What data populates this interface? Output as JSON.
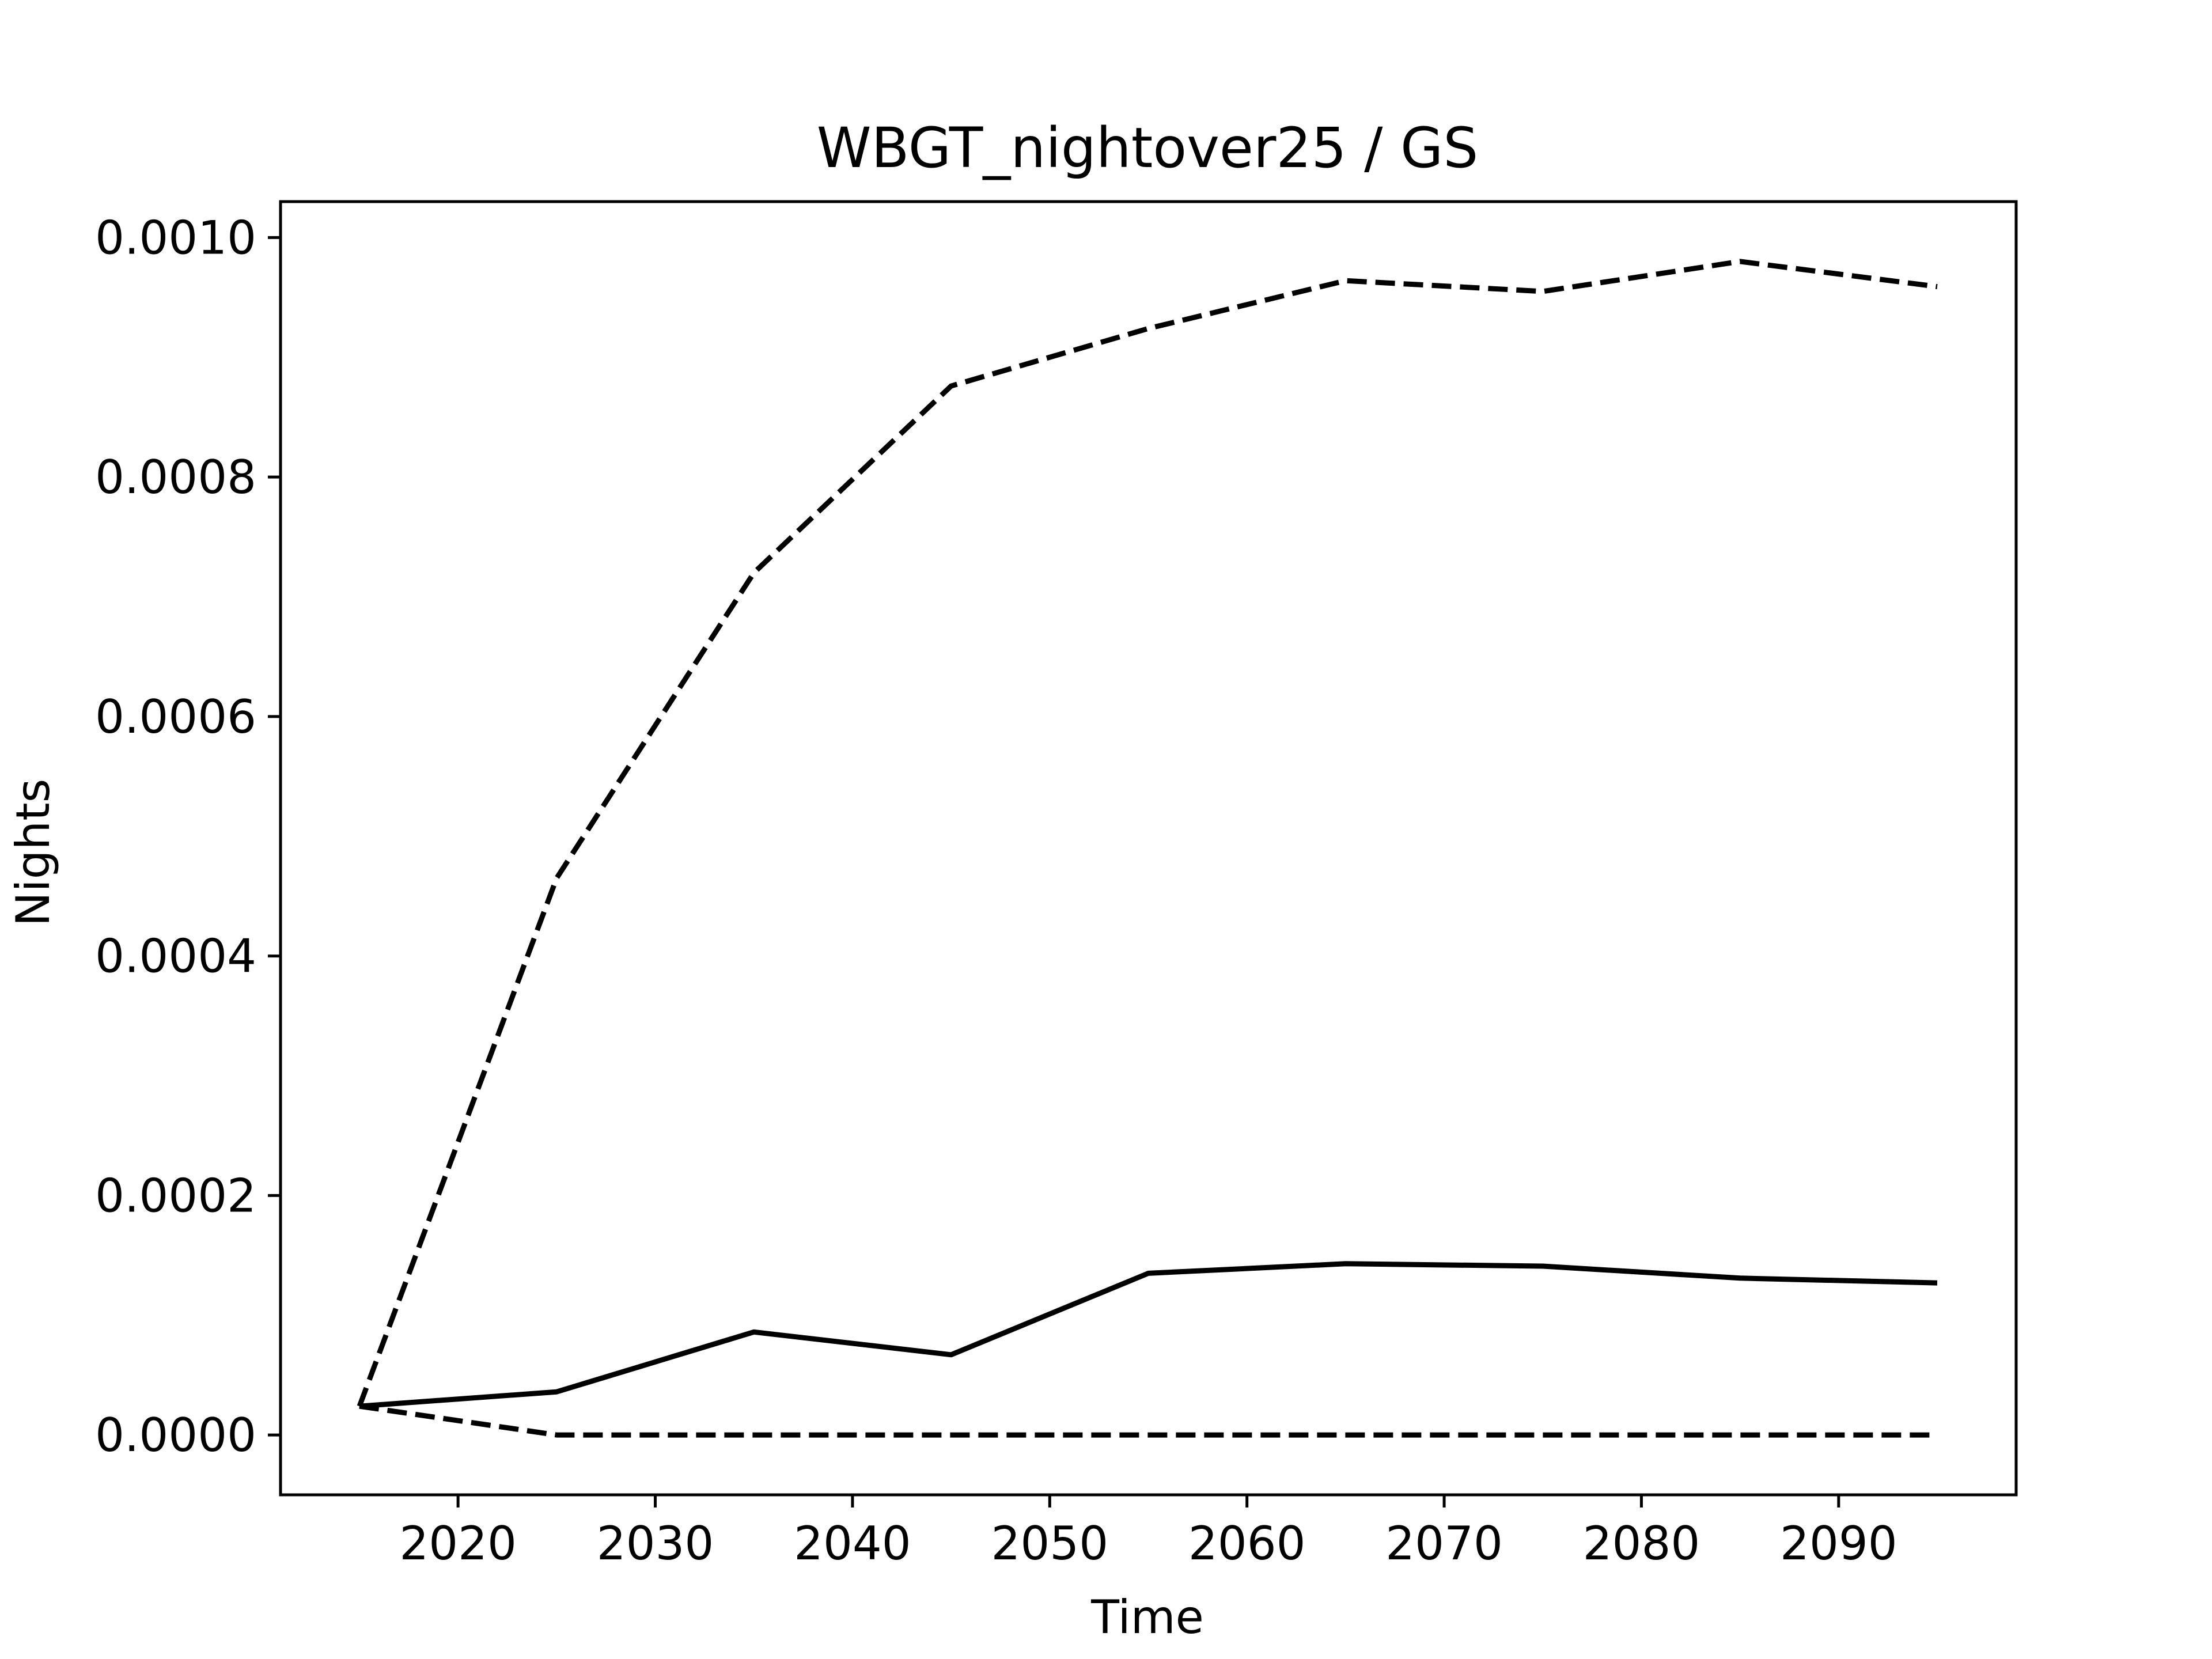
{
  "chart_data": {
    "type": "line",
    "title": "WBGT_nightover25 / GS",
    "xlabel": "Time",
    "ylabel": "Nights",
    "xlim": [
      2011,
      2099
    ],
    "ylim": [
      -5e-05,
      0.00103
    ],
    "xticks": [
      2020,
      2030,
      2040,
      2050,
      2060,
      2070,
      2080,
      2090
    ],
    "xtick_labels": [
      "2020",
      "2030",
      "2040",
      "2050",
      "2060",
      "2070",
      "2080",
      "2090"
    ],
    "yticks": [
      0,
      0.0002,
      0.0004,
      0.0006,
      0.0008,
      0.001
    ],
    "ytick_labels": [
      "0.0000",
      "0.0002",
      "0.0004",
      "0.0006",
      "0.0008",
      "0.0010"
    ],
    "grid": false,
    "legend": "none",
    "x": [
      2015,
      2025,
      2035,
      2045,
      2055,
      2065,
      2075,
      2085,
      2095
    ],
    "series": [
      {
        "style": "solid",
        "color": "#000000",
        "values": [
          2.4e-05,
          3.6e-05,
          8.6e-05,
          6.7e-05,
          0.000135,
          0.000143,
          0.000141,
          0.000131,
          0.000127
        ]
      },
      {
        "style": "dashed",
        "color": "#000000",
        "values": [
          2.4e-05,
          0.000465,
          0.00072,
          0.000876,
          0.000924,
          0.000964,
          0.000955,
          0.00098,
          0.000959
        ]
      },
      {
        "style": "dashed",
        "color": "#000000",
        "values": [
          2.4e-05,
          0.0,
          0.0,
          0.0,
          0.0,
          0.0,
          0.0,
          0.0,
          0.0
        ]
      }
    ]
  }
}
